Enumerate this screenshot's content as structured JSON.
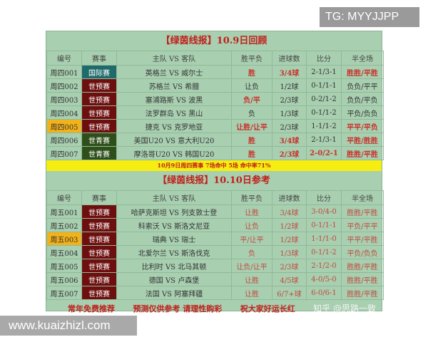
{
  "overlay": {
    "tg": "TG: MYYJJPP",
    "site": "www.kuaizhizl.com",
    "watermark": "知乎 @思路一致"
  },
  "headers": [
    "编号",
    "赛事",
    "主队 VS 客队",
    "胜平负",
    "进球数",
    "比分",
    "半全场"
  ],
  "review": {
    "title": "【绿茵线报】10.9日回顾",
    "rows": [
      {
        "id": "周四001",
        "comp": "国际赛",
        "ctype": "intl",
        "match": "英格兰 VS 威尔士",
        "wdl": "胜",
        "goals": "3/4球",
        "score": "2-1/3-1",
        "hf": "胜胜/平胜",
        "hit": [
          1,
          1,
          0,
          1
        ]
      },
      {
        "id": "周四002",
        "comp": "世预赛",
        "ctype": "wc",
        "match": "苏格兰 VS 希腊",
        "wdl": "让负",
        "goals": "1/2球",
        "score": "0-1/1-1",
        "hf": "负负/平平",
        "hit": [
          0,
          0,
          0,
          0
        ]
      },
      {
        "id": "周四003",
        "comp": "世预赛",
        "ctype": "wc",
        "match": "塞浦路斯 VS 波黑",
        "wdl": "负/平",
        "goals": "2/3球",
        "score": "0-2/1-2",
        "hf": "负负/平负",
        "hit": [
          1,
          0,
          0,
          0
        ]
      },
      {
        "id": "周四004",
        "comp": "世预赛",
        "ctype": "wc",
        "match": "法罗群岛 VS 黑山",
        "wdl": "负",
        "goals": "1/3球",
        "score": "0-1/1-2",
        "hf": "平负/负负",
        "hit": [
          0,
          0,
          0,
          0
        ]
      },
      {
        "id": "周四005",
        "comp": "世预赛",
        "ctype": "wc",
        "match": "捷克 VS 克罗地亚",
        "wdl": "让胜/让平",
        "goals": "2/3球",
        "score": "1-1/1-2",
        "hf": "平平/平负",
        "hit": [
          1,
          0,
          0,
          1
        ],
        "highlight": true
      },
      {
        "id": "周四006",
        "comp": "世青赛",
        "ctype": "yc",
        "match": "美国U20 VS 意大利U20",
        "wdl": "胜",
        "goals": "3/4球",
        "score": "2-1/3-1",
        "hf": "平胜/胜胜",
        "hit": [
          1,
          1,
          0,
          1
        ]
      },
      {
        "id": "周四007",
        "comp": "世青赛",
        "ctype": "yc",
        "match": "摩洛哥U20 VS 韩国U20",
        "wdl": "胜",
        "goals": "2/3球",
        "score": "2-0/2-1",
        "hf": "胜胜/平胜",
        "hit": [
          1,
          1,
          1,
          1
        ]
      }
    ],
    "summary": "10月9日周四赛事  7场命中  5场        命中率71%"
  },
  "preview": {
    "title": "【绿茵线报】10.10日参考",
    "rows": [
      {
        "id": "周五001",
        "comp": "世预赛",
        "ctype": "wc",
        "match": "哈萨克斯坦 VS 列支敦士登",
        "wdl": "让胜",
        "goals": "3/4球",
        "score": "3-0/4-0",
        "hf": "胜胜/平胜"
      },
      {
        "id": "周五002",
        "comp": "世预赛",
        "ctype": "wc",
        "match": "科索沃 VS 斯洛文尼亚",
        "wdl": "让负",
        "goals": "1/2球",
        "score": "0-1/1-1",
        "hf": "平负/平平"
      },
      {
        "id": "周五003",
        "comp": "世预赛",
        "ctype": "wc",
        "match": "瑞典 VS 瑞士",
        "wdl": "平/让平",
        "goals": "1/2球",
        "score": "1-1/1-0",
        "hf": "平平/平胜",
        "highlight": true
      },
      {
        "id": "周五004",
        "comp": "世预赛",
        "ctype": "wc",
        "match": "北爱尔兰 VS 斯洛伐克",
        "wdl": "负",
        "goals": "1/3球",
        "score": "0-1/1-2",
        "hf": "平负/负负"
      },
      {
        "id": "周五005",
        "comp": "世预赛",
        "ctype": "wc",
        "match": "比利时 VS 北马其顿",
        "wdl": "让负/让平",
        "goals": "2/3球",
        "score": "2-1/2-0",
        "hf": "胜胜/平胜"
      },
      {
        "id": "周五006",
        "comp": "世预赛",
        "ctype": "wc",
        "match": "德国 VS 卢森堡",
        "wdl": "让胜",
        "goals": "4/5球",
        "score": "4-0/5-0",
        "hf": "胜胜/平胜"
      },
      {
        "id": "周五007",
        "comp": "世预赛",
        "ctype": "wc",
        "match": "法国 VS 阿塞拜疆",
        "wdl": "让胜",
        "goals": "6/7+球",
        "score": "6-0/6-1",
        "hf": "胜胜/平胜"
      }
    ]
  },
  "footer": {
    "left": "常年免费推荐",
    "middle": "预测仅供参考  请理性购彩",
    "right": "祝大家好运长红"
  }
}
